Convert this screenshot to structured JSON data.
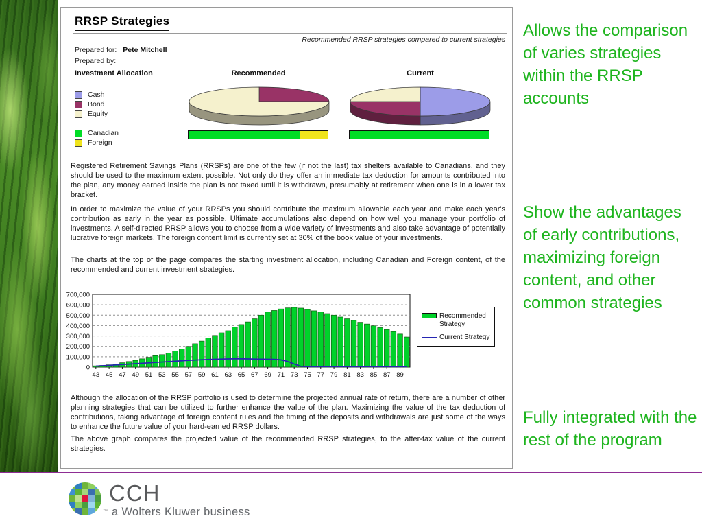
{
  "slide": {
    "note_color": "#1eb41e",
    "divider_color": "#8e2d94",
    "side_notes": [
      {
        "text": "Allows the comparison of varies strategies within the RRSP accounts"
      },
      {
        "text": "Show the advantages of early contributions, maximizing foreign content, and other common strategies"
      },
      {
        "text": "Fully integrated with the rest of the program"
      }
    ]
  },
  "document": {
    "title": "RRSP Strategies",
    "subtitle": "Recommended RRSP strategies compared to current strategies",
    "prepared_for_label": "Prepared for:",
    "prepared_for_value": "Pete Mitchell",
    "prepared_by_label": "Prepared by:",
    "allocation_header": "Investment Allocation",
    "recommended_header": "Recommended",
    "current_header": "Current",
    "legend": [
      {
        "label": "Cash",
        "color": "#9c9ce8"
      },
      {
        "label": "Bond",
        "color": "#993366"
      },
      {
        "label": "Equity",
        "color": "#f5f1cd"
      },
      {
        "label": "Canadian",
        "color": "#00dd26"
      },
      {
        "label": "Foreign",
        "color": "#f0e41c"
      }
    ],
    "paragraphs": [
      "Registered Retirement Savings Plans (RRSPs) are one of the few (if not the last) tax shelters available to Canadians, and they should be used to the maximum extent possible.  Not only do they offer an immediate tax deduction for amounts contributed into the plan, any money earned inside the plan is not taxed until it is withdrawn, presumably at retirement when one is in a lower tax bracket.",
      "In order to maximize the value of your RRSPs you should contribute the maximum allowable each year and make each year's contribution as early in the year as possible.  Ultimate accumulations also depend on how well you manage your portfolio of investments.  A self-directed RRSP allows you to choose from a wide variety of investments and also take advantage of potentially lucrative foreign markets.  The foreign content limit is currently set at 30% of the book value of your investments.",
      "The charts at the top of the page compares the starting investment allocation, including Canadian and Foreign content, of the recommended and current investment strategies.",
      "Although the allocation of the RRSP portfolio is used to determine the projected annual rate of return, there are a number of other planning strategies that can be utilized to further enhance the value of the plan.  Maximizing the value of the tax deduction of contributions, taking advantage of foreign content rules and the timing of the deposits and withdrawals are just some of the ways to enhance the future value of your hard-earned RRSP dollars.",
      "The above graph compares the projected value of the recommended RRSP strategies, to the after-tax value of the current strategies."
    ]
  },
  "chart_data": [
    {
      "type": "pie",
      "title": "Recommended",
      "labels": [
        "Cash",
        "Bond",
        "Equity"
      ],
      "values": [
        0,
        25,
        75
      ],
      "colors": [
        "#9c9ce8",
        "#993366",
        "#f5f1cd"
      ],
      "style": "3d"
    },
    {
      "type": "pie",
      "title": "Current",
      "labels": [
        "Cash",
        "Bond",
        "Equity"
      ],
      "values": [
        50,
        25,
        25
      ],
      "colors": [
        "#9c9ce8",
        "#993366",
        "#f5f1cd"
      ],
      "style": "3d"
    },
    {
      "type": "bar",
      "title": "Recommended Canadian/Foreign content",
      "categories": [
        "Canadian",
        "Foreign"
      ],
      "values": [
        80,
        20
      ],
      "colors": [
        "#00dd26",
        "#f0e41c"
      ],
      "unit": "percent"
    },
    {
      "type": "bar",
      "title": "Current Canadian/Foreign content",
      "categories": [
        "Canadian",
        "Foreign"
      ],
      "values": [
        100,
        0
      ],
      "colors": [
        "#00dd26",
        "#f0e41c"
      ],
      "unit": "percent"
    },
    {
      "type": "bar",
      "title": "Projected value of recommended strategy vs after-tax value of current strategy by age",
      "x": [
        43,
        44,
        45,
        46,
        47,
        48,
        49,
        50,
        51,
        52,
        53,
        54,
        55,
        56,
        57,
        58,
        59,
        60,
        61,
        62,
        63,
        64,
        65,
        66,
        67,
        68,
        69,
        70,
        71,
        72,
        73,
        74,
        75,
        76,
        77,
        78,
        79,
        80,
        81,
        82,
        83,
        84,
        85,
        86,
        87,
        88,
        89,
        90
      ],
      "xticks": [
        43,
        45,
        47,
        49,
        51,
        53,
        55,
        57,
        59,
        61,
        63,
        65,
        67,
        69,
        71,
        73,
        75,
        77,
        79,
        81,
        83,
        85,
        87,
        89
      ],
      "ylim": [
        0,
        700000
      ],
      "ytick_step": 100000,
      "grid": "dashed-horizontal",
      "legend_position": "right",
      "series": [
        {
          "name": "Recommended Strategy",
          "type": "bar",
          "color": "#00d22a",
          "values": [
            12000,
            16000,
            22000,
            30000,
            42000,
            54000,
            65000,
            80000,
            95000,
            110000,
            120000,
            135000,
            155000,
            175000,
            200000,
            225000,
            250000,
            280000,
            305000,
            330000,
            350000,
            385000,
            410000,
            435000,
            465000,
            500000,
            530000,
            545000,
            560000,
            570000,
            575000,
            568000,
            555000,
            542000,
            530000,
            515000,
            500000,
            482000,
            465000,
            450000,
            432000,
            415000,
            398000,
            380000,
            362000,
            342000,
            318000,
            290000
          ]
        },
        {
          "name": "Current Strategy",
          "type": "line",
          "color": "#2626b2",
          "values": [
            10000,
            13000,
            17000,
            21000,
            25000,
            29000,
            33000,
            37000,
            41000,
            45000,
            49000,
            53000,
            57000,
            61000,
            65000,
            68000,
            71000,
            74000,
            76000,
            78000,
            79000,
            80000,
            80000,
            79000,
            78000,
            77000,
            76000,
            75000,
            70000,
            55000,
            30000,
            8000,
            5000,
            5000,
            5000,
            5000,
            5000,
            5000,
            5000,
            5000,
            5000,
            5000,
            5000,
            5000,
            5000,
            5000,
            5000,
            5000
          ]
        }
      ]
    }
  ],
  "footer": {
    "brand": "CCH",
    "trademark": "™",
    "tagline": "a Wolters Kluwer business",
    "logo_colors": [
      "#86c440",
      "#2f7fc1",
      "#6fb53a",
      "#8fd05e",
      "#5ea7dc",
      "#3f8fd2",
      "#5cb334",
      "#a5d77c",
      "#3a6fb0",
      "#7fc25b",
      "#6fb53a",
      "#bfe08e",
      "#e0153c",
      "#7fb2d8",
      "#4a9e3f",
      "#2f7fc1",
      "#8fd05e",
      "#4a9e3f",
      "#9fd8ef",
      "#5cb334",
      "#86c440",
      "#3a6fb0",
      "#6fb53a",
      "#5ea7dc",
      "#8fd05e"
    ]
  }
}
